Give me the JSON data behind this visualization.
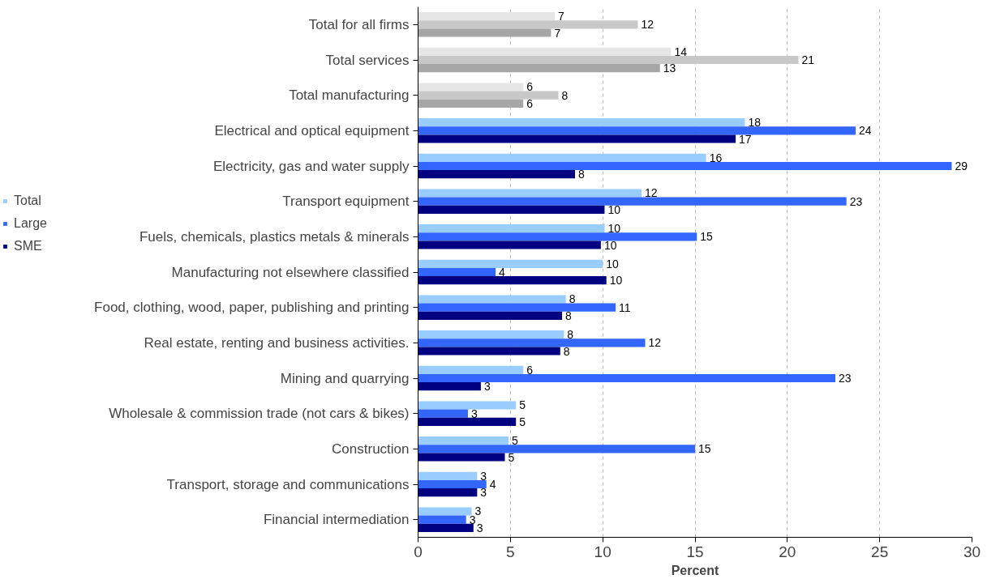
{
  "chart_data": {
    "type": "bar",
    "orientation": "horizontal",
    "xlabel": "Percent",
    "categories": [
      "Total for all firms",
      "Total services",
      "Total manufacturing",
      "Electrical and optical equipment",
      "Electricity, gas and water supply",
      "Transport equipment",
      "Fuels, chemicals, plastics metals & minerals",
      "Manufacturing not elsewhere classified",
      "Food, clothing, wood, paper, publishing and printing",
      "Real estate, renting and business activities.",
      "Mining and quarrying",
      "Wholesale & commission trade (not cars & bikes)",
      "Construction",
      "Transport, storage and communications",
      "Financial intermediation"
    ],
    "series": [
      {
        "name": "Total",
        "color": "#99ccff",
        "colors": [
          "#e6e6e6",
          "#e6e6e6",
          "#e6e6e6",
          "#99ccff",
          "#99ccff",
          "#99ccff",
          "#99ccff",
          "#99ccff",
          "#99ccff",
          "#99ccff",
          "#99ccff",
          "#99ccff",
          "#99ccff",
          "#99ccff",
          "#99ccff"
        ],
        "values": [
          7.4,
          13.7,
          5.7,
          17.7,
          15.6,
          12.1,
          10.1,
          10.0,
          8.0,
          7.9,
          5.7,
          5.3,
          4.9,
          3.2,
          2.9
        ],
        "value_labels": [
          "7",
          "14",
          "6",
          "18",
          "16",
          "12",
          "10",
          "10",
          "8",
          "8",
          "6",
          "5",
          "5",
          "3",
          "3"
        ]
      },
      {
        "name": "Large",
        "color": "#3366ff",
        "colors": [
          "#c8c8c8",
          "#c8c8c8",
          "#c8c8c8",
          "#3366ff",
          "#3366ff",
          "#3366ff",
          "#3366ff",
          "#3366ff",
          "#3366ff",
          "#3366ff",
          "#3366ff",
          "#3366ff",
          "#3366ff",
          "#3366ff",
          "#3366ff"
        ],
        "values": [
          11.9,
          20.6,
          7.6,
          23.7,
          28.9,
          23.2,
          15.1,
          4.2,
          10.7,
          12.3,
          22.6,
          2.7,
          15.0,
          3.7,
          2.6
        ],
        "value_labels": [
          "12",
          "21",
          "8",
          "24",
          "29",
          "23",
          "15",
          "4",
          "11",
          "12",
          "23",
          "3",
          "15",
          "4",
          "3"
        ]
      },
      {
        "name": "SME",
        "color": "#000080",
        "colors": [
          "#a6a6a6",
          "#a6a6a6",
          "#a6a6a6",
          "#000080",
          "#000080",
          "#000080",
          "#000080",
          "#000080",
          "#000080",
          "#000080",
          "#000080",
          "#000080",
          "#000080",
          "#000080",
          "#000080"
        ],
        "values": [
          7.2,
          13.1,
          5.7,
          17.2,
          8.5,
          10.1,
          9.9,
          10.2,
          7.8,
          7.7,
          3.4,
          5.3,
          4.7,
          3.2,
          3.0
        ],
        "value_labels": [
          "7",
          "13",
          "6",
          "17",
          "8",
          "10",
          "10",
          "10",
          "8",
          "8",
          "3",
          "5",
          "5",
          "3",
          "3"
        ]
      }
    ],
    "xlim": [
      0,
      30
    ],
    "xticks": [
      0,
      5,
      10,
      15,
      20,
      25,
      30
    ],
    "grid": "x",
    "legend": "left"
  }
}
